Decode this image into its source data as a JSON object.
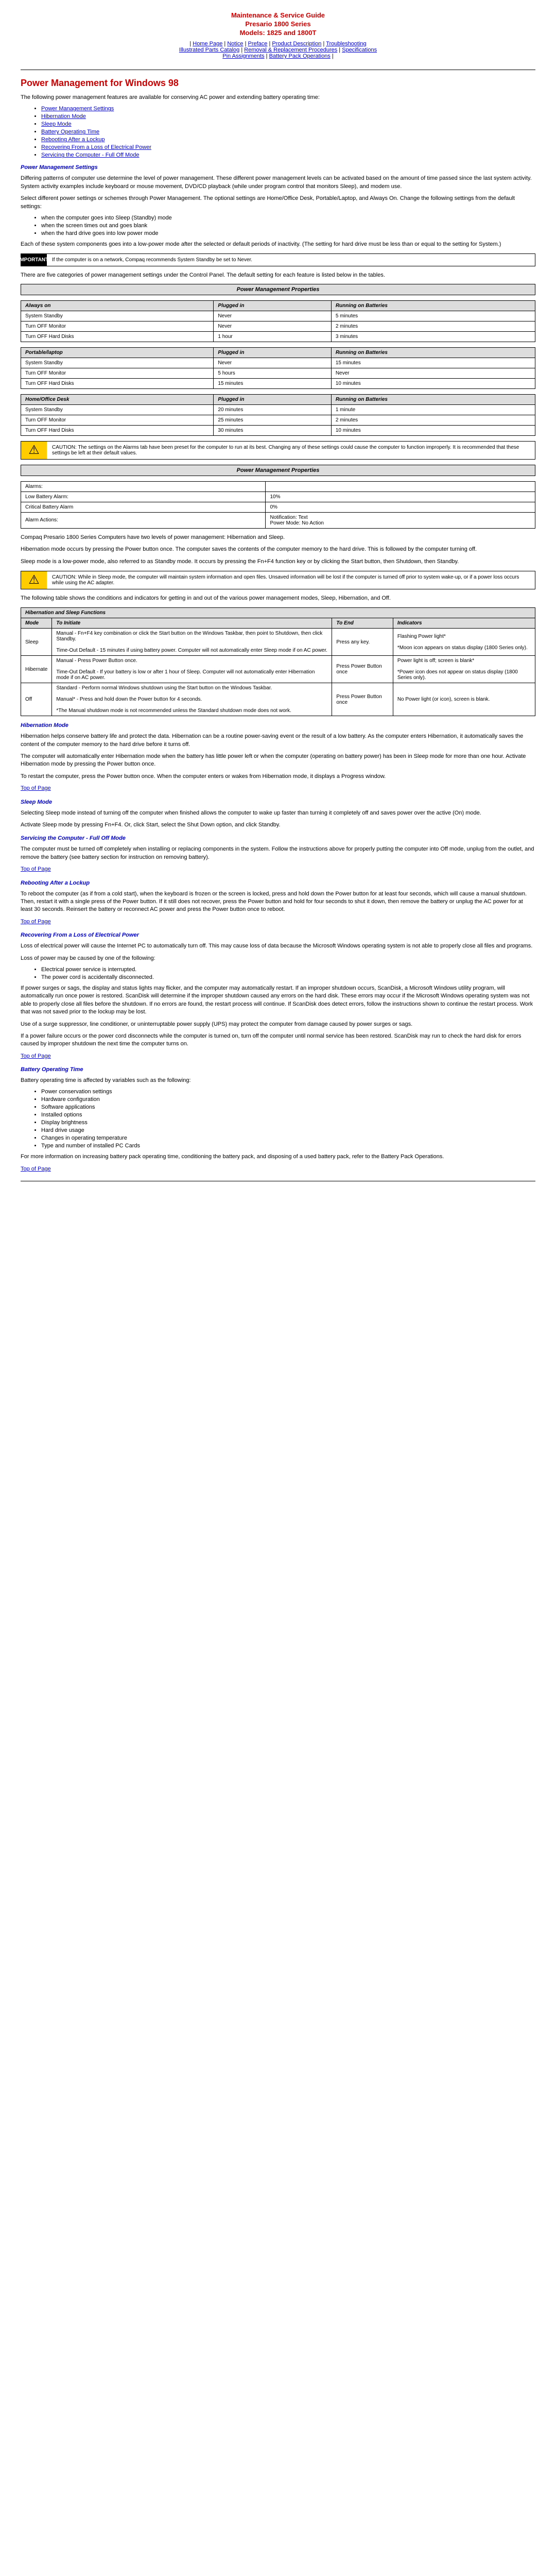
{
  "header": {
    "title1": "Maintenance & Service Guide",
    "title2": "Presario 1800 Series",
    "title3": "Models: 1825 and 1800T"
  },
  "nav": [
    "Home Page",
    "Notice",
    "Preface",
    "Product Description",
    "Troubleshooting",
    "Illustrated Parts Catalog",
    "Removal & Replacement Procedures",
    "Specifications",
    "Pin Assignments",
    "Battery Pack Operations"
  ],
  "pageTitle": "Power Management for Windows 98",
  "intro": "The following power management features are available for conserving AC power and extending battery operating time:",
  "tocLinks": [
    "Power Management Settings",
    "Hibernation Mode",
    "Sleep Mode",
    "Battery Operating Time",
    "Rebooting After a Lockup",
    "Recovering From a Loss of Electrical Power",
    "Servicing the Computer - Full Off Mode"
  ],
  "pms": {
    "heading": "Power Management Settings",
    "p1": "Differing patterns of computer use determine the level of power management. These different power management levels can be activated based on the amount of time passed since the last system activity. System activity examples include keyboard or mouse movement, DVD/CD playback (while under program control that monitors Sleep), and modem use.",
    "p2": "Select different power settings or schemes through Power Management. The optional settings are Home/Office Desk, Portable/Laptop, and Always On. Change the following settings from the default settings:",
    "bullets1": [
      "when the computer goes into Sleep (Standby) mode",
      "when the screen times out and goes blank",
      "when the hard drive goes into low power mode"
    ],
    "p3": "Each of these system components goes into a low-power mode after the selected or default periods of inactivity. (The setting for hard drive must be less than or equal to the setting for System.)",
    "important": "If the computer is on a network, Compaq recommends System Standby be set to Never.",
    "p4": "There are five categories of power management settings under the Control Panel. The default setting for each feature is listed below in the tables.",
    "tableTitle": "Power Management Properties",
    "cols": [
      "Always on",
      "Plugged in",
      "Running on Batteries"
    ],
    "rows1": [
      [
        "System Standby",
        "Never",
        "5 minutes"
      ],
      [
        "Turn OFF Monitor",
        "Never",
        "2 minutes"
      ],
      [
        "Turn OFF Hard Disks",
        "1 hour",
        "3 minutes"
      ]
    ],
    "cols2": [
      "Portable/laptop",
      "Plugged in",
      "Running on Batteries"
    ],
    "rows2": [
      [
        "System Standby",
        "Never",
        "15 minutes"
      ],
      [
        "Turn OFF Monitor",
        "5 hours",
        "Never"
      ],
      [
        "Turn OFF Hard Disks",
        "15 minutes",
        "10 minutes"
      ]
    ],
    "cols3": [
      "Home/Office Desk",
      "Plugged in",
      "Running on Batteries"
    ],
    "rows3": [
      [
        "System Standby",
        "20 minutes",
        "1 minute"
      ],
      [
        "Turn OFF Monitor",
        "25 minutes",
        "2 minutes"
      ],
      [
        "Turn OFF Hard Disks",
        "30 minutes",
        "10 minutes"
      ]
    ],
    "caution1": "CAUTION: The settings on the Alarms tab have been preset for the computer to run at its best. Changing any of these settings could cause the computer to function improperly. It is recommended that these settings be left at their default values.",
    "alarmsTitle": "Power Management Properties",
    "alarmsRows": [
      [
        "Alarms:",
        ""
      ],
      [
        "Low Battery Alarm:",
        "10%"
      ],
      [
        "Critical Battery Alarm",
        "0%"
      ],
      [
        "Alarm Actions:",
        "Notification: Text\nPower Mode: No Action"
      ]
    ],
    "p5": "Compaq Presario 1800 Series Computers have two levels of power management: Hibernation and Sleep.",
    "p6": "Hibernation mode occurs by pressing the Power button once. The computer saves the contents of the computer memory to the hard drive. This is followed by the computer turning off.",
    "p7": "Sleep mode is a low-power mode, also referred to as Standby mode. It occurs by pressing the Fn+F4 function key or by clicking the Start button, then Shutdown, then Standby.",
    "caution2": "CAUTION: While in Sleep mode, the computer will maintain system information and open files. Unsaved information will be lost if the computer is turned off prior to system wake-up, or if a power loss occurs while using the AC adapter.",
    "p8": "The following table shows the conditions and indicators for getting in and out of the various power management modes, Sleep, Hibernation, and Off."
  },
  "hibTable": {
    "title": "Hibernation and Sleep Functions",
    "cols": [
      "Mode",
      "To Initiate",
      "To End",
      "Indicators"
    ],
    "rows": [
      [
        "Sleep",
        "Manual - Fn+F4 key combination or click the Start button on the Windows Taskbar, then point to Shutdown, then click Standby.\n\nTime-Out Default - 15 minutes if using battery power. Computer will not automatically enter Sleep mode if on AC power.",
        "Press any key.",
        "Flashing Power light*\n\n*Moon icon appears on status display (1800 Series only)."
      ],
      [
        "Hibernate",
        "Manual - Press Power Button once.\n\nTime-Out Default - If your battery is low or after 1 hour of Sleep. Computer will not automatically enter Hibernation mode if on AC power.",
        "Press Power Button once",
        "Power light is off; screen is blank*\n\n*Power icon does not appear on status display (1800 Series only)."
      ],
      [
        "Off",
        "Standard - Perform normal Windows shutdown using the Start button on the Windows Taskbar.\n\nManual* - Press and hold down the Power button for 4 seconds.\n\n*The Manual shutdown mode is not recommended unless the Standard shutdown mode does not work.",
        "Press Power Button once",
        "No Power light (or icon), screen is blank."
      ]
    ]
  },
  "hib": {
    "heading": "Hibernation Mode",
    "p1": "Hibernation helps conserve battery life and protect the data. Hibernation can be a routine power-saving event or the result of a low battery. As the computer enters Hibernation, it automatically saves the content of the computer memory to the hard drive before it turns off.",
    "p2": "The computer will automatically enter Hibernation mode when the battery has little power left or when the computer (operating on battery power) has been in Sleep mode for more than one hour. Activate Hibernation mode by pressing the Power button once.",
    "p3": "To restart the computer, press the Power button once. When the computer enters or wakes from Hibernation mode, it displays a Progress window."
  },
  "sleep": {
    "heading": "Sleep Mode",
    "p1": "Selecting Sleep mode instead of turning off the computer when finished allows the computer to wake up faster than turning it completely off and saves power over the active (On) mode.",
    "p2": "Activate Sleep mode by pressing Fn+F4. Or, click Start, select the Shut Down option, and click Standby."
  },
  "serv": {
    "heading": "Servicing the Computer - Full Off Mode",
    "p1": "The computer must be turned off completely when installing or replacing components in the system. Follow the instructions above for properly putting the computer into Off mode, unplug from the outlet, and remove the battery (see battery section for instruction on removing battery)."
  },
  "reboot": {
    "heading": "Rebooting After a Lockup",
    "p1": "To reboot the computer (as if from a cold start), when the keyboard is frozen or the screen is locked, press and hold down the Power button for at least four seconds, which will cause a manual shutdown. Then, restart it with a single press of the Power button. If it still does not recover, press the Power button and hold for four seconds to shut it down, then remove the battery or unplug the AC power for at least 30 seconds. Reinsert the battery or reconnect AC power and press the Power button once to reboot."
  },
  "loss": {
    "heading": "Recovering From a Loss of Electrical Power",
    "p1": "Loss of electrical power will cause the Internet PC to automatically turn off. This may cause loss of data because the Microsoft Windows operating system is not able to properly close all files and programs.",
    "p2": "Loss of power may be caused by one of the following:",
    "bullets": [
      "Electrical power service is interrupted.",
      "The power cord is accidentally disconnected."
    ],
    "p3": "If power surges or sags, the display and status lights may flicker, and the computer may automatically restart. If an improper shutdown occurs, ScanDisk, a Microsoft Windows utility program, will automatically run once power is restored. ScanDisk will determine if the improper shutdown caused any errors on the hard disk. These errors may occur if the Microsoft Windows operating system was not able to properly close all files before the shutdown. If no errors are found, the restart process will continue. If ScanDisk does detect errors, follow the instructions shown to continue the restart process. Work that was not saved prior to the lockup may be lost.",
    "p4": "Use of a surge suppressor, line conditioner, or uninterruptable power supply (UPS) may protect the computer from damage caused by power surges or sags.",
    "p5": "If a power failure occurs or the power cord disconnects while the computer is turned on, turn off the computer until normal service has been restored. ScanDisk may run to check the hard disk for errors caused by improper shutdown the next time the computer turns on."
  },
  "bat": {
    "heading": "Battery Operating Time",
    "p1": "Battery operating time is affected by variables such as the following:",
    "bullets": [
      "Power conservation settings",
      "Hardware configuration",
      "Software applications",
      "Installed options",
      "Display brightness",
      "Hard drive usage",
      "Changes in operating temperature",
      "Type and number of installed PC Cards"
    ],
    "p2": "For more information on increasing battery pack operating time, conditioning the battery pack, and disposing of a used battery pack, refer to the Battery Pack Operations."
  },
  "topLink": "Top of Page"
}
